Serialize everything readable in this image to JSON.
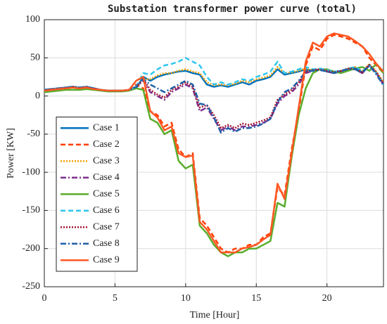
{
  "chart_data": {
    "type": "line",
    "title": "Substation transformer power curve (total)",
    "x_label": "Time [Hour]",
    "y_label": "Power [KW]",
    "xlim": [
      0,
      24
    ],
    "xticks": [
      0,
      5,
      10,
      15,
      20
    ],
    "ylim": [
      -250,
      100
    ],
    "yticks": [
      -250,
      -200,
      -150,
      -100,
      -50,
      0,
      50,
      100
    ],
    "grid": true,
    "legend": "lower left",
    "x": [
      0,
      0.5,
      1,
      1.5,
      2,
      2.5,
      3,
      3.5,
      4,
      4.5,
      5,
      5.5,
      6,
      6.5,
      7,
      7.5,
      8,
      8.5,
      9,
      9.5,
      10,
      10.5,
      11,
      11.5,
      12,
      12.5,
      13,
      13.5,
      14,
      14.5,
      15,
      15.5,
      16,
      16.5,
      17,
      17.5,
      18,
      18.5,
      19,
      19.5,
      20,
      20.5,
      21,
      21.5,
      22,
      22.5,
      23,
      23.5,
      24
    ],
    "series": [
      {
        "name": "Case 1",
        "color": "#0072bd",
        "style": "solid",
        "values": [
          8,
          9,
          10,
          11,
          12,
          11,
          12,
          10,
          8,
          7,
          7,
          7,
          8,
          10,
          25,
          20,
          25,
          28,
          30,
          32,
          33,
          30,
          28,
          15,
          12,
          14,
          12,
          15,
          18,
          15,
          20,
          22,
          25,
          35,
          28,
          30,
          32,
          35,
          33,
          35,
          32,
          30,
          32,
          35,
          35,
          30,
          40,
          30,
          15
        ]
      },
      {
        "name": "Case 2",
        "color": "#ff3d00",
        "style": "dashed",
        "values": [
          7,
          8,
          9,
          10,
          11,
          10,
          11,
          9,
          8,
          7,
          7,
          7,
          8,
          15,
          10,
          -20,
          -25,
          -40,
          -35,
          -70,
          -80,
          -75,
          -160,
          -170,
          -185,
          -200,
          -205,
          -200,
          -200,
          -195,
          -195,
          -185,
          -180,
          -120,
          -130,
          -70,
          -20,
          40,
          65,
          60,
          75,
          80,
          78,
          75,
          70,
          65,
          50,
          40,
          30
        ]
      },
      {
        "name": "Case 3",
        "color": "#f0a000",
        "style": "dotted",
        "values": [
          7,
          8,
          9,
          10,
          11,
          10,
          11,
          9,
          8,
          7,
          7,
          7,
          8,
          12,
          22,
          22,
          27,
          30,
          30,
          33,
          35,
          32,
          30,
          18,
          14,
          15,
          14,
          16,
          20,
          18,
          22,
          24,
          27,
          38,
          30,
          31,
          33,
          36,
          34,
          35,
          33,
          31,
          33,
          36,
          38,
          33,
          42,
          32,
          18
        ]
      },
      {
        "name": "Case 4",
        "color": "#7e2f8e",
        "style": "dashdot",
        "values": [
          8,
          9,
          10,
          11,
          12,
          11,
          12,
          10,
          8,
          7,
          7,
          7,
          8,
          12,
          20,
          5,
          0,
          -5,
          5,
          10,
          15,
          10,
          -20,
          -15,
          -30,
          -45,
          -40,
          -45,
          -40,
          -40,
          -38,
          -35,
          -30,
          -10,
          0,
          5,
          15,
          30,
          33,
          35,
          32,
          30,
          32,
          35,
          35,
          30,
          40,
          30,
          15
        ]
      },
      {
        "name": "Case 5",
        "color": "#5aad2c",
        "style": "solid",
        "values": [
          5,
          6,
          7,
          8,
          8,
          8,
          9,
          8,
          7,
          6,
          6,
          6,
          7,
          10,
          8,
          -30,
          -35,
          -50,
          -45,
          -85,
          -95,
          -90,
          -170,
          -180,
          -195,
          -205,
          -210,
          -205,
          -205,
          -200,
          -200,
          -195,
          -190,
          -140,
          -145,
          -80,
          -25,
          10,
          30,
          35,
          35,
          32,
          30,
          33,
          36,
          38,
          33,
          42,
          30
        ]
      },
      {
        "name": "Case 6",
        "color": "#2fc6f0",
        "style": "dashed",
        "values": [
          8,
          9,
          10,
          11,
          12,
          11,
          12,
          10,
          8,
          7,
          7,
          7,
          8,
          12,
          30,
          28,
          35,
          40,
          42,
          45,
          50,
          45,
          40,
          25,
          15,
          18,
          15,
          18,
          22,
          20,
          25,
          28,
          32,
          45,
          30,
          32,
          35,
          38,
          35,
          36,
          34,
          32,
          33,
          36,
          38,
          32,
          40,
          30,
          15
        ]
      },
      {
        "name": "Case 7",
        "color": "#a2142f",
        "style": "dotted",
        "values": [
          8,
          9,
          10,
          11,
          12,
          11,
          12,
          10,
          8,
          7,
          7,
          7,
          8,
          12,
          22,
          8,
          2,
          -2,
          8,
          12,
          18,
          12,
          -15,
          -12,
          -25,
          -42,
          -38,
          -42,
          -36,
          -38,
          -35,
          -32,
          -28,
          -5,
          2,
          8,
          18,
          32,
          34,
          35,
          33,
          31,
          33,
          36,
          36,
          31,
          41,
          31,
          16
        ]
      },
      {
        "name": "Case 8",
        "color": "#1f5fa8",
        "style": "dashdot",
        "values": [
          8,
          9,
          10,
          11,
          12,
          11,
          12,
          10,
          8,
          7,
          7,
          7,
          8,
          12,
          22,
          15,
          10,
          5,
          10,
          15,
          20,
          15,
          -10,
          -12,
          -28,
          -48,
          -42,
          -47,
          -42,
          -42,
          -40,
          -36,
          -30,
          -8,
          5,
          10,
          20,
          32,
          33,
          34,
          32,
          30,
          33,
          35,
          36,
          31,
          40,
          28,
          14
        ]
      },
      {
        "name": "Case 9",
        "color": "#ff5722",
        "style": "solid",
        "values": [
          7,
          8,
          9,
          10,
          11,
          10,
          11,
          9,
          8,
          7,
          7,
          7,
          8,
          20,
          25,
          -20,
          -28,
          -45,
          -40,
          -75,
          -80,
          -78,
          -165,
          -175,
          -190,
          -205,
          -205,
          -205,
          -200,
          -198,
          -195,
          -188,
          -182,
          -115,
          -135,
          -75,
          -15,
          45,
          70,
          65,
          78,
          82,
          80,
          78,
          72,
          65,
          55,
          42,
          32
        ]
      }
    ]
  }
}
